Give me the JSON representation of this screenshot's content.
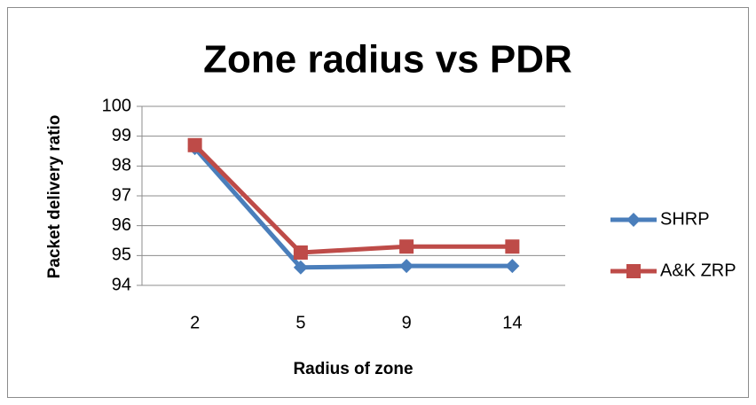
{
  "chart_data": {
    "type": "line",
    "title": "Zone radius vs PDR",
    "x_label": "Radius of zone",
    "y_label": "Packet delivery ratio",
    "categories": [
      "2",
      "5",
      "9",
      "14"
    ],
    "series": [
      {
        "name": "SHRP",
        "color": "#4a7ebb",
        "marker": "diamond",
        "values": [
          98.6,
          94.6,
          94.65,
          94.65
        ]
      },
      {
        "name": "A&K ZRP",
        "color": "#be4b48",
        "marker": "square",
        "values": [
          98.7,
          95.1,
          95.3,
          95.3
        ]
      }
    ],
    "ylim": [
      94,
      100
    ],
    "yticks": [
      94,
      95,
      96,
      97,
      98,
      99,
      100
    ],
    "grid": true,
    "legend": "right"
  }
}
